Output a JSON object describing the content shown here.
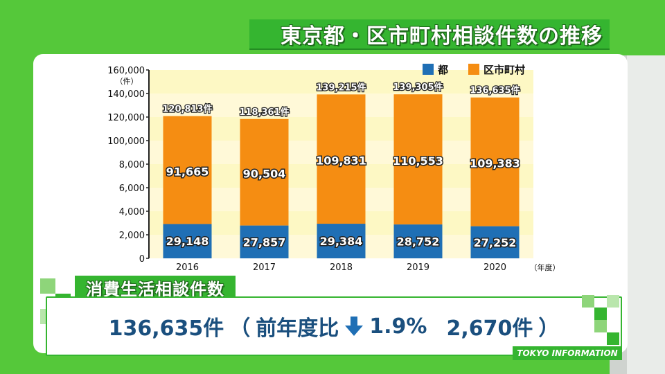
{
  "title": "東京都・区市町村相談件数の推移",
  "subtitle": "消費生活相談件数",
  "stat": {
    "total": "136,635件",
    "paren_open": "（",
    "compare_label": "前年度比",
    "percent": "1.9%",
    "diff": "2,670件",
    "paren_close": "）",
    "direction_icon": "down-arrow-icon"
  },
  "footer": "TOKYO INFORMATION",
  "colors": {
    "tokyo": "#1f6fb5",
    "municipal": "#f58d12",
    "accent_green": "#35b530",
    "stat_text": "#1a4f7e"
  },
  "chart_data": {
    "type": "bar",
    "stacked": true,
    "categories": [
      "2016",
      "2017",
      "2018",
      "2019",
      "2020"
    ],
    "x_unit": "（年度）",
    "y_unit": "（件）",
    "y_tick_labels": [
      "0",
      "2,000",
      "4,000",
      "6,000",
      "8,000",
      "100,000",
      "120,000",
      "140,000",
      "160,000"
    ],
    "ylim": [
      0,
      160000
    ],
    "series": [
      {
        "name": "都",
        "values": [
          29148,
          27857,
          29384,
          28752,
          27252
        ],
        "labels": [
          "29,148",
          "27,857",
          "29,384",
          "28,752",
          "27,252"
        ]
      },
      {
        "name": "区市町村",
        "values": [
          91665,
          90504,
          109831,
          110553,
          109383
        ],
        "labels": [
          "91,665",
          "90,504",
          "109,831",
          "110,553",
          "109,383"
        ]
      }
    ],
    "totals": [
      "120,813件",
      "118,361件",
      "139,215件",
      "139,305件",
      "136,635件"
    ],
    "total_values": [
      120813,
      118361,
      139215,
      139305,
      136635
    ],
    "legend_position": "top-right",
    "grid_bands": true
  }
}
